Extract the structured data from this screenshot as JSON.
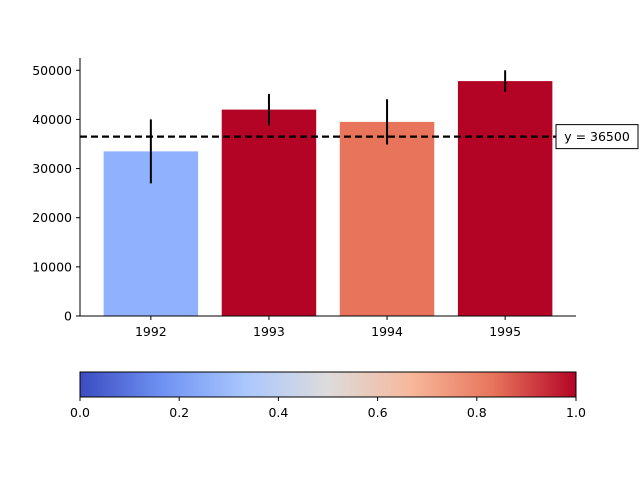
{
  "chart_data": {
    "type": "bar",
    "categories": [
      "1992",
      "1993",
      "1994",
      "1995"
    ],
    "values": [
      33500,
      42000,
      39500,
      47800
    ],
    "errors": [
      6500,
      3200,
      4600,
      2200
    ],
    "bar_colors": [
      "#90b2fe",
      "#b40426",
      "#e7745b",
      "#b40426"
    ],
    "bar_color_values": [
      0.28,
      1.0,
      0.82,
      1.0
    ],
    "ylim": [
      0,
      52500
    ],
    "yticks": [
      0,
      10000,
      20000,
      30000,
      40000,
      50000
    ],
    "reference_line": {
      "y": 36500,
      "label": "y = 36500",
      "style": "dashed",
      "color": "#000000"
    },
    "colorbar": {
      "colormap": "coolwarm",
      "range": [
        0.0,
        1.0
      ],
      "ticks": [
        "0.0",
        "0.2",
        "0.4",
        "0.6",
        "0.8",
        "1.0"
      ],
      "stops": [
        "#3b4cc0",
        "#6f92f3",
        "#aac7fd",
        "#dddcdc",
        "#f7b89c",
        "#e7745b",
        "#b40426"
      ]
    },
    "title": "",
    "xlabel": "",
    "ylabel": "",
    "grid": false,
    "legend": "none"
  }
}
